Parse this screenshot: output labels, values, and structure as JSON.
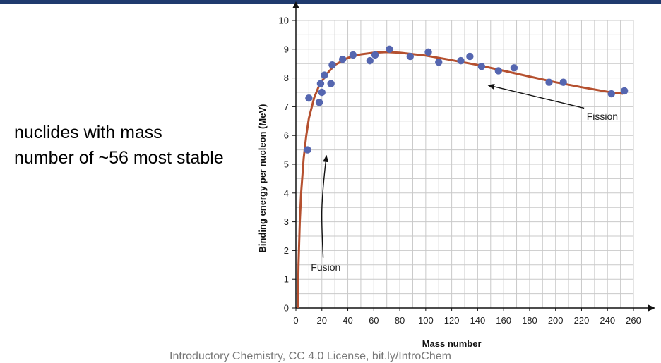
{
  "slide": {
    "side_text": "nuclides with mass number of ~56 most stable",
    "footer_text": "Introductory Chemistry, CC 4.0 License, bit.ly/IntroChem",
    "accent_color": "#1f3a6e"
  },
  "chart_data": {
    "type": "scatter",
    "title": "",
    "xlabel": "Mass number",
    "ylabel": "Binding energy per nucleon (MeV)",
    "xlim": [
      0,
      260
    ],
    "ylim": [
      0,
      10
    ],
    "xticks": [
      "0",
      "20",
      "40",
      "60",
      "80",
      "100",
      "120",
      "140",
      "160",
      "180",
      "200",
      "220",
      "240",
      "260"
    ],
    "yticks": [
      "0",
      "1",
      "2",
      "3",
      "4",
      "5",
      "6",
      "7",
      "8",
      "9",
      "10"
    ],
    "grid": true,
    "points_color": "#5566b0",
    "curve_color": "#b5502f",
    "points": [
      {
        "x": 9,
        "y": 5.5
      },
      {
        "x": 10,
        "y": 7.3
      },
      {
        "x": 18,
        "y": 7.15
      },
      {
        "x": 19,
        "y": 7.8
      },
      {
        "x": 20,
        "y": 7.5
      },
      {
        "x": 22,
        "y": 8.1
      },
      {
        "x": 27,
        "y": 7.8
      },
      {
        "x": 28,
        "y": 8.45
      },
      {
        "x": 36,
        "y": 8.65
      },
      {
        "x": 44,
        "y": 8.8
      },
      {
        "x": 57,
        "y": 8.6
      },
      {
        "x": 61,
        "y": 8.8
      },
      {
        "x": 72,
        "y": 9.0
      },
      {
        "x": 88,
        "y": 8.75
      },
      {
        "x": 102,
        "y": 8.9
      },
      {
        "x": 110,
        "y": 8.55
      },
      {
        "x": 127,
        "y": 8.6
      },
      {
        "x": 134,
        "y": 8.75
      },
      {
        "x": 143,
        "y": 8.4
      },
      {
        "x": 156,
        "y": 8.25
      },
      {
        "x": 168,
        "y": 8.35
      },
      {
        "x": 195,
        "y": 7.85
      },
      {
        "x": 206,
        "y": 7.85
      },
      {
        "x": 243,
        "y": 7.45
      },
      {
        "x": 253,
        "y": 7.55
      }
    ],
    "curve": [
      {
        "x": 1.5,
        "y": 0
      },
      {
        "x": 2,
        "y": 1.5
      },
      {
        "x": 3,
        "y": 3.0
      },
      {
        "x": 4,
        "y": 4.0
      },
      {
        "x": 6,
        "y": 5.2
      },
      {
        "x": 8,
        "y": 6.0
      },
      {
        "x": 10,
        "y": 6.6
      },
      {
        "x": 14,
        "y": 7.3
      },
      {
        "x": 18,
        "y": 7.75
      },
      {
        "x": 24,
        "y": 8.15
      },
      {
        "x": 30,
        "y": 8.45
      },
      {
        "x": 40,
        "y": 8.7
      },
      {
        "x": 50,
        "y": 8.82
      },
      {
        "x": 60,
        "y": 8.88
      },
      {
        "x": 70,
        "y": 8.9
      },
      {
        "x": 80,
        "y": 8.88
      },
      {
        "x": 100,
        "y": 8.78
      },
      {
        "x": 120,
        "y": 8.62
      },
      {
        "x": 140,
        "y": 8.45
      },
      {
        "x": 160,
        "y": 8.25
      },
      {
        "x": 180,
        "y": 8.05
      },
      {
        "x": 200,
        "y": 7.85
      },
      {
        "x": 220,
        "y": 7.68
      },
      {
        "x": 240,
        "y": 7.52
      },
      {
        "x": 252,
        "y": 7.45
      }
    ],
    "annotations": [
      {
        "text": "Fusion",
        "label_x": 23,
        "label_y": 1.3,
        "arrow_from": [
          21,
          1.75
        ],
        "arrow_to": [
          23.5,
          5.3
        ]
      },
      {
        "text": "Fission",
        "label_x": 236,
        "label_y": 6.55,
        "arrow_from": [
          222,
          6.95
        ],
        "arrow_to": [
          148,
          7.75
        ]
      }
    ]
  }
}
